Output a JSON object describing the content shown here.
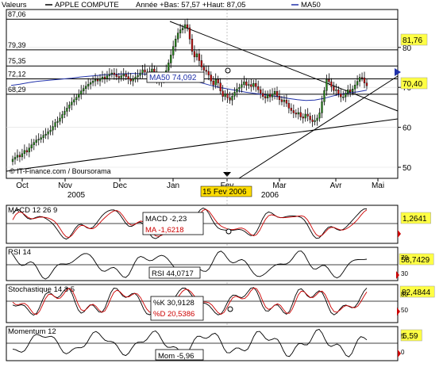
{
  "header": {
    "menu_label": "Valeurs",
    "symbol": "APPLE COMPUTE",
    "period_stats": "Année +Bas: 57,57 +Haut: 87,05",
    "ma_legend": "MA50"
  },
  "colors": {
    "up": "#2a8a1e",
    "down": "#cc1111",
    "ma": "#2233aa",
    "red": "#cc0000",
    "black": "#000000",
    "badge": "#ffff44",
    "date_badge": "#ffdd00"
  },
  "chart_data": {
    "type": "candlestick",
    "symbol": "APPLE COMPUTE",
    "source": "© IT-Finance.com / Boursorama",
    "price_axis": {
      "ylim": [
        47,
        88
      ],
      "ticks": [
        50,
        60,
        70,
        80
      ],
      "right_labels": {
        "last": "70,40",
        "high_line": "81,76"
      }
    },
    "reference_lines": {
      "values": [
        87.06,
        79.39,
        75.35,
        72.12,
        68.29
      ],
      "labels": [
        "87,06",
        "79,39",
        "75,35",
        "72,12",
        "68,29"
      ]
    },
    "ma50_label": "MA50 74,092",
    "time_axis": {
      "months": [
        "Oct",
        "Nov",
        "Dec",
        "Jan",
        "Fev",
        "Mar",
        "Avr",
        "Mai"
      ],
      "years": [
        {
          "label": "2005",
          "month": "Nov"
        },
        {
          "label": "2006",
          "month": "Mar"
        }
      ],
      "cursor_date": "15 Fev 2006"
    },
    "close": [
      52,
      52.5,
      53,
      52.6,
      53.4,
      54.2,
      53.8,
      54.8,
      55.6,
      56.2,
      56.8,
      57,
      57.4,
      58,
      58.3,
      58.9,
      59.3,
      60.2,
      61.2,
      61.5,
      62.3,
      63.2,
      64,
      64.8,
      65.6,
      66.3,
      66.9,
      67.5,
      68.3,
      69.1,
      69.7,
      70.3,
      70.8,
      71.2,
      71.6,
      72,
      71.6,
      72.1,
      72.6,
      72.2,
      72.9,
      73.3,
      73.6,
      73.2,
      72.7,
      72.4,
      72.9,
      73.3,
      72.7,
      72.1,
      71.6,
      72.1,
      72.6,
      73,
      73.6,
      74.4,
      73.8,
      73.3,
      73.9,
      74.6,
      73.9,
      72.2,
      71.4,
      71.9,
      72.7,
      74.2,
      76.1,
      78.1,
      80.2,
      82.1,
      83.6,
      84.4,
      84.8,
      85.7,
      84.9,
      82.1,
      79,
      77.6,
      78.4,
      76.7,
      75.1,
      74.3,
      74,
      73.1,
      71.6,
      70.6,
      72,
      71.1,
      69.1,
      67.7,
      68.4,
      67.4,
      66.8,
      67.8,
      68.8,
      69.6,
      70,
      70.7,
      71.4,
      70.5,
      70.7,
      70.2,
      71,
      70.2,
      69.4,
      68.5,
      67.7,
      67.3,
      68.3,
      67.6,
      68.3,
      69,
      67.8,
      66.9,
      66.4,
      66.8,
      66,
      64.8,
      64.2,
      63.6,
      63.3,
      63.7,
      62.6,
      62.3,
      63.3,
      62.8,
      61.9,
      61.4,
      61.7,
      62.3,
      63.6,
      66.4,
      69.2,
      72,
      71.4,
      70.2,
      69.2,
      69.4,
      68.4,
      67.6,
      67.6,
      68.5,
      69.4,
      68.9,
      69.6,
      70.6,
      71.5,
      72.5,
      72.4,
      71.1,
      70.4
    ],
    "ma50": [
      70.5,
      70.8,
      71.2,
      71.5,
      71.7,
      71.9,
      72.1,
      72.3,
      72.6,
      72.8,
      73,
      73.2,
      73.3,
      73.4,
      73.5,
      73.4,
      73.2,
      73,
      72.8,
      72.5,
      72.1,
      71.6,
      71.1,
      70.5,
      70,
      69.6,
      69.2,
      68.8,
      68.5,
      68.2,
      67.9,
      67.6,
      67.2,
      66.9,
      66.7,
      66.8,
      67.2,
      67.8,
      68.3,
      68.6,
      68.9,
      69.3
    ],
    "indicators": [
      {
        "name": "MACD",
        "title": "MACD 12 26 9",
        "value_label": "MACD -2,23",
        "signal_label": "MA -1,6218",
        "last": "1,2641"
      },
      {
        "name": "RSI",
        "title": "RSI 14",
        "value_label": "RSI 44,0717",
        "last": "58,7429",
        "ticks": [
          30,
          70
        ]
      },
      {
        "name": "Stochastique",
        "title": "Stochastique 14 3 5",
        "value_label": "%K 30,9128",
        "signal_label": "%D 20,5386",
        "last": "82,4844",
        "ticks": [
          50,
          80
        ]
      },
      {
        "name": "Momentum",
        "title": "Momentum 12",
        "value_label": "Mom -5,96",
        "last": "5,59",
        "ticks": [
          0,
          5
        ]
      }
    ]
  }
}
